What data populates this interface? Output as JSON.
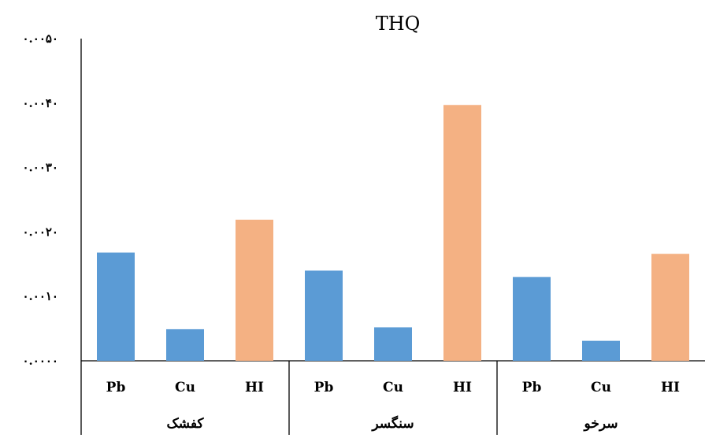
{
  "chart_data": {
    "type": "bar",
    "title": "THQ",
    "ylim": [
      0,
      0.005
    ],
    "y_tick_labels": [
      "۰.۰۰۰۰",
      "۰.۰۰۱۰",
      "۰.۰۰۲۰",
      "۰.۰۰۳۰",
      "۰.۰۰۴۰",
      "۰.۰۰۵۰"
    ],
    "y_ticks": [
      0,
      0.001,
      0.002,
      0.003,
      0.004,
      0.005
    ],
    "grid": false,
    "legend": "none",
    "groups": [
      {
        "name": "کفشک",
        "categories": [
          "Pb",
          "Cu",
          "HI"
        ],
        "values": [
          0.00168,
          0.00049,
          0.00219
        ]
      },
      {
        "name": "سنگسر",
        "categories": [
          "Pb",
          "Cu",
          "HI"
        ],
        "values": [
          0.0014,
          0.00052,
          0.00397
        ]
      },
      {
        "name": "سرخو",
        "categories": [
          "Pb",
          "Cu",
          "HI"
        ],
        "values": [
          0.0013,
          0.00031,
          0.00166
        ]
      }
    ],
    "colors": {
      "Pb": "#5b9bd5",
      "Cu": "#5b9bd5",
      "HI": "#f4b183"
    }
  }
}
